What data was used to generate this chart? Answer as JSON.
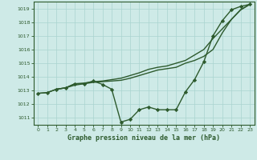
{
  "title": "Graphe pression niveau de la mer (hPa)",
  "background_color": "#ceeae7",
  "grid_color": "#aad4d0",
  "line_color": "#2d5a2d",
  "spine_color": "#2d5a2d",
  "xlim": [
    -0.5,
    23.5
  ],
  "ylim": [
    1010.5,
    1019.5
  ],
  "yticks": [
    1011,
    1012,
    1013,
    1014,
    1015,
    1016,
    1017,
    1018,
    1019
  ],
  "xticks": [
    0,
    1,
    2,
    3,
    4,
    5,
    6,
    7,
    8,
    9,
    10,
    11,
    12,
    13,
    14,
    15,
    16,
    17,
    18,
    19,
    20,
    21,
    22,
    23
  ],
  "series": [
    {
      "x": [
        0,
        1,
        2,
        3,
        4,
        5,
        6,
        7,
        8,
        9,
        10,
        11,
        12,
        13,
        14,
        15,
        16,
        17,
        18,
        19,
        20,
        21,
        22,
        23
      ],
      "y": [
        1012.8,
        1012.85,
        1013.1,
        1013.2,
        1013.4,
        1013.5,
        1013.6,
        1013.65,
        1013.7,
        1013.75,
        1013.9,
        1014.1,
        1014.3,
        1014.5,
        1014.6,
        1014.7,
        1015.0,
        1015.2,
        1015.5,
        1016.0,
        1017.2,
        1018.2,
        1018.9,
        1019.3
      ],
      "marker": null,
      "linewidth": 1.0
    },
    {
      "x": [
        0,
        1,
        2,
        3,
        4,
        5,
        6,
        7,
        8,
        9,
        10,
        11,
        12,
        13,
        14,
        15,
        16,
        17,
        18,
        19,
        20,
        21,
        22,
        23
      ],
      "y": [
        1012.8,
        1012.85,
        1013.1,
        1013.2,
        1013.5,
        1013.5,
        1013.7,
        1013.45,
        1013.1,
        1010.7,
        1010.9,
        1011.6,
        1011.8,
        1011.6,
        1011.6,
        1011.6,
        1012.9,
        1013.8,
        1015.1,
        1017.0,
        1018.1,
        1018.9,
        1019.15,
        1019.3
      ],
      "marker": "D",
      "markersize": 2.2,
      "linewidth": 1.0
    },
    {
      "x": [
        2,
        3,
        4,
        5,
        6,
        7,
        8,
        9,
        10,
        11,
        12,
        13,
        14,
        15,
        16,
        17,
        18,
        19,
        20,
        21,
        22,
        23
      ],
      "y": [
        1013.1,
        1013.2,
        1013.5,
        1013.55,
        1013.65,
        1013.7,
        1013.8,
        1013.9,
        1014.1,
        1014.3,
        1014.55,
        1014.7,
        1014.8,
        1015.0,
        1015.2,
        1015.6,
        1016.0,
        1016.8,
        1017.5,
        1018.2,
        1018.9,
        1019.3
      ],
      "marker": null,
      "linewidth": 1.0
    }
  ]
}
